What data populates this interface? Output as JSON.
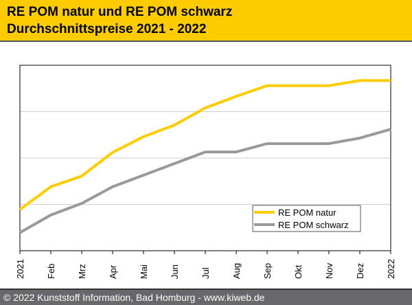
{
  "header": {
    "title_line1": "RE POM natur und RE POM schwarz",
    "title_line2": "Durchschnittspreise 2021 - 2022"
  },
  "footer": {
    "text": "© 2022 Kunststoff Information, Bad Homburg - www.kiweb.de"
  },
  "colors": {
    "header_bg": "#ffcc00",
    "natur": "#ffcc00",
    "schwarz": "#999999",
    "footer_bg": "#68686a"
  },
  "chart_data": {
    "type": "line",
    "title": "",
    "xlabel": "",
    "ylabel": "",
    "categories": [
      "2021",
      "Feb",
      "Mrz",
      "Apr",
      "Mai",
      "Jun",
      "Jul",
      "Aug",
      "Sep",
      "Okt",
      "Nov",
      "Dez",
      "2022"
    ],
    "ylim": [
      0,
      4
    ],
    "y_ticks_labeled": false,
    "grid": true,
    "legend": "bottom-right",
    "series": [
      {
        "name": "RE POM natur",
        "color": "#ffcc00",
        "values": [
          0.89,
          1.38,
          1.61,
          2.12,
          2.46,
          2.71,
          3.08,
          3.33,
          3.56,
          3.56,
          3.56,
          3.67,
          3.67
        ]
      },
      {
        "name": "RE POM schwarz",
        "color": "#999999",
        "values": [
          0.39,
          0.77,
          1.02,
          1.38,
          1.63,
          1.88,
          2.13,
          2.13,
          2.31,
          2.31,
          2.31,
          2.43,
          2.62
        ]
      }
    ]
  }
}
